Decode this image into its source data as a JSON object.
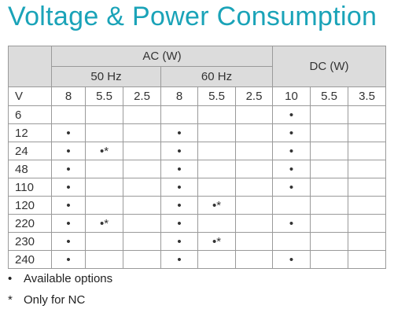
{
  "title": "Voltage & Power Consumption",
  "table": {
    "ac_label": "AC (W)",
    "dc_label": "DC (W)",
    "hz50_label": "50 Hz",
    "hz60_label": "60 Hz",
    "col_headers": [
      "V",
      "8",
      "5.5",
      "2.5",
      "8",
      "5.5",
      "2.5",
      "10",
      "5.5",
      "3.5"
    ],
    "rows": [
      [
        "6",
        "",
        "",
        "",
        "",
        "",
        "",
        "•",
        "",
        ""
      ],
      [
        "12",
        "•",
        "",
        "",
        "•",
        "",
        "",
        "•",
        "",
        ""
      ],
      [
        "24",
        "•",
        "•*",
        "",
        "•",
        "",
        "",
        "•",
        "",
        ""
      ],
      [
        "48",
        "•",
        "",
        "",
        "•",
        "",
        "",
        "•",
        "",
        ""
      ],
      [
        "110",
        "•",
        "",
        "",
        "•",
        "",
        "",
        "•",
        "",
        ""
      ],
      [
        "120",
        "•",
        "",
        "",
        "•",
        "•*",
        "",
        "",
        "",
        ""
      ],
      [
        "220",
        "•",
        "•*",
        "",
        "•",
        "",
        "",
        "•",
        "",
        ""
      ],
      [
        "230",
        "•",
        "",
        "",
        "•",
        "•*",
        "",
        "",
        "",
        ""
      ],
      [
        "240",
        "•",
        "",
        "",
        "•",
        "",
        "",
        "•",
        "",
        ""
      ]
    ]
  },
  "legend": [
    {
      "symbol": "•",
      "text": "Available options"
    },
    {
      "symbol": "*",
      "text": "Only for NC"
    }
  ]
}
